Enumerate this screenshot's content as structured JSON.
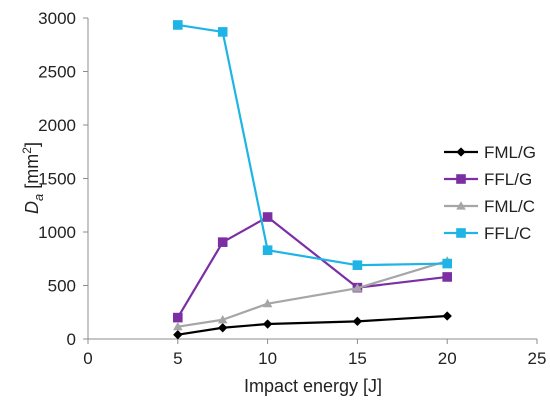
{
  "chart_data": {
    "type": "line",
    "xlabel": "Impact energy [J]",
    "ylabel_main": "D",
    "ylabel_sub": "a",
    "ylabel_unit": " [mm",
    "ylabel_sup": "2",
    "ylabel_close": "]",
    "xlim": [
      0,
      25
    ],
    "ylim": [
      0,
      3000
    ],
    "xticks": [
      0,
      5,
      10,
      15,
      20,
      25
    ],
    "yticks": [
      0,
      500,
      1000,
      1500,
      2000,
      2500,
      3000
    ],
    "grid": false,
    "legend_position": "right",
    "series": [
      {
        "name": "FML/G",
        "color": "#000000",
        "marker": "diamond",
        "x": [
          5,
          7.5,
          10,
          15,
          20
        ],
        "y": [
          40,
          105,
          140,
          165,
          215
        ]
      },
      {
        "name": "FFL/G",
        "color": "#7b2fa3",
        "marker": "square",
        "x": [
          5,
          7.5,
          10,
          15,
          20
        ],
        "y": [
          200,
          905,
          1140,
          480,
          580
        ]
      },
      {
        "name": "FML/C",
        "color": "#a6a6a6",
        "marker": "triangle",
        "x": [
          5,
          7.5,
          10,
          15,
          20
        ],
        "y": [
          115,
          180,
          330,
          475,
          730
        ]
      },
      {
        "name": "FFL/C",
        "color": "#1fb4e6",
        "marker": "square",
        "x": [
          5,
          7.5,
          10,
          15,
          20
        ],
        "y": [
          2935,
          2870,
          830,
          690,
          705
        ]
      }
    ]
  }
}
